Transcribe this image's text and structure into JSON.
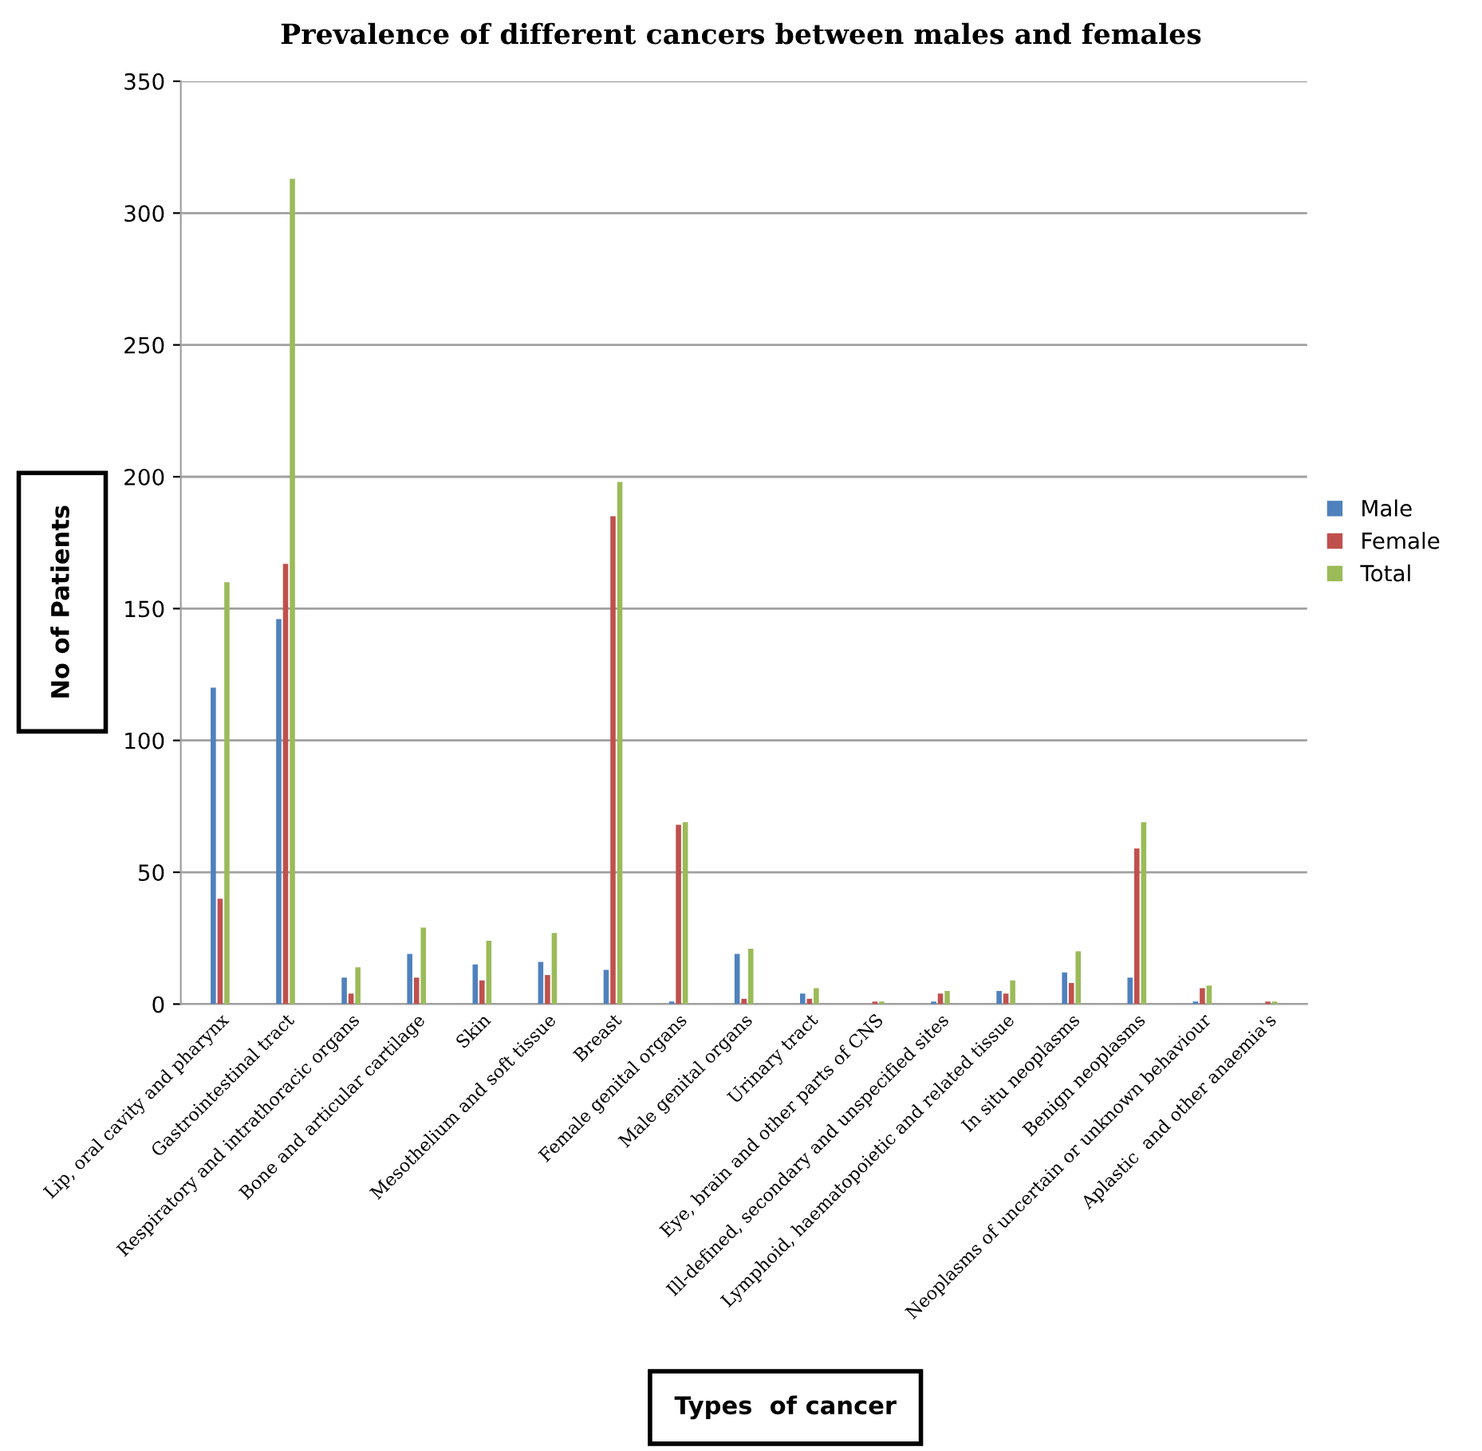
{
  "chart_data": {
    "type": "bar",
    "title": "Prevalence of different cancers between males and females",
    "xlabel": "Types  of cancer",
    "ylabel": "No of Patients",
    "categories": [
      "Lip, oral cavity and pharynx",
      "Gastrointestinal tract",
      "Respiratory and intrathoracic organs",
      "Bone and articular cartilage",
      "Skin",
      "Mesothelium and soft tissue",
      "Breast",
      "Female genital organs",
      "Male genital organs",
      "Urinary tract",
      "Eye, brain and other parts of CNS",
      "Ill-defined, secondary and unspecified sites",
      "Lymphoid, haematopoietic and related tissue",
      "In situ neoplasms",
      "Benign neoplasms",
      "Neoplasms of uncertain or unknown behaviour",
      "Aplastic  and other anaemia's"
    ],
    "series": [
      {
        "name": "Male",
        "color": "#4f81bd",
        "values": [
          120,
          146,
          10,
          19,
          15,
          16,
          13,
          1,
          19,
          4,
          0,
          1,
          5,
          12,
          10,
          1,
          0
        ]
      },
      {
        "name": "Female",
        "color": "#c0504d",
        "values": [
          40,
          167,
          4,
          10,
          9,
          11,
          185,
          68,
          2,
          2,
          1,
          4,
          4,
          8,
          59,
          6,
          1
        ]
      },
      {
        "name": "Total",
        "color": "#9bbb59",
        "values": [
          160,
          313,
          14,
          29,
          24,
          27,
          198,
          69,
          21,
          6,
          1,
          5,
          9,
          20,
          69,
          7,
          1
        ]
      }
    ],
    "ylim": [
      0,
      350
    ],
    "yticks": [
      0,
      50,
      100,
      150,
      200,
      250,
      300,
      350
    ],
    "grid": "y",
    "legend": "right"
  }
}
